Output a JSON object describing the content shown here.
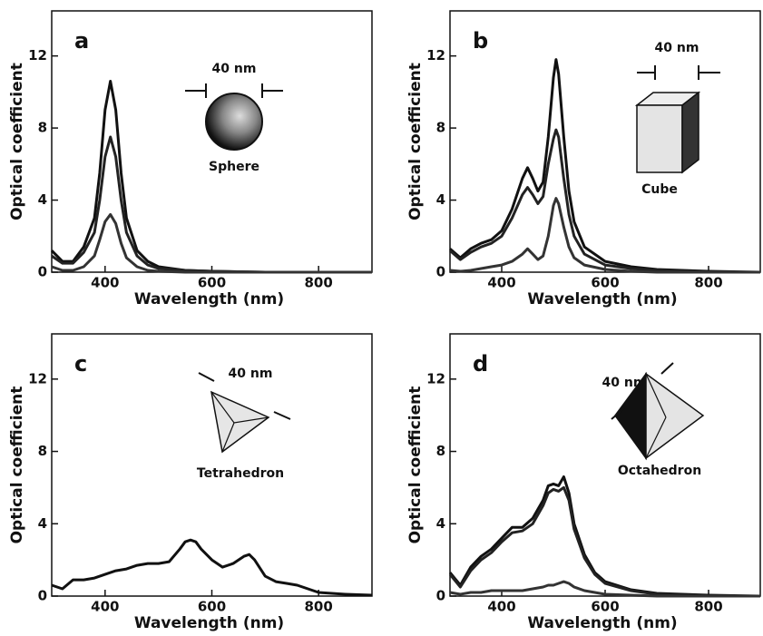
{
  "chart_data": [
    {
      "type": "line",
      "label": "a",
      "xlabel": "Wavelength (nm)",
      "ylabel": "Optical coefficient",
      "scale_label": "40 nm",
      "shape_label": "Sphere",
      "xlim": [
        300,
        900
      ],
      "ylim": [
        0,
        14.5
      ],
      "xticks": [
        400,
        600,
        800
      ],
      "yticks": [
        0,
        4,
        8,
        12
      ],
      "x": [
        300,
        320,
        340,
        360,
        380,
        390,
        400,
        410,
        420,
        430,
        440,
        460,
        480,
        500,
        550,
        600,
        700,
        800,
        900
      ],
      "series": [
        {
          "color": "#111111",
          "values": [
            1.2,
            0.6,
            0.6,
            1.4,
            3.0,
            5.5,
            9.0,
            10.6,
            9.0,
            5.5,
            3.0,
            1.2,
            0.6,
            0.3,
            0.1,
            0.05,
            0,
            0,
            0
          ]
        },
        {
          "color": "#222222",
          "values": [
            0.9,
            0.5,
            0.5,
            1.1,
            2.2,
            4.0,
            6.4,
            7.5,
            6.4,
            4.0,
            2.2,
            0.9,
            0.4,
            0.2,
            0.1,
            0.05,
            0,
            0,
            0
          ]
        },
        {
          "color": "#333333",
          "values": [
            0.3,
            0.1,
            0.1,
            0.3,
            0.9,
            1.8,
            2.8,
            3.2,
            2.7,
            1.6,
            0.8,
            0.3,
            0.1,
            0.05,
            0,
            0,
            0,
            0,
            0
          ]
        }
      ]
    },
    {
      "type": "line",
      "label": "b",
      "xlabel": "Wavelength (nm)",
      "ylabel": "Optical coefficient",
      "scale_label": "40 nm",
      "shape_label": "Cube",
      "xlim": [
        300,
        900
      ],
      "ylim": [
        0,
        14.5
      ],
      "xticks": [
        400,
        600,
        800
      ],
      "yticks": [
        0,
        4,
        8,
        12
      ],
      "x": [
        300,
        320,
        340,
        360,
        380,
        400,
        420,
        440,
        450,
        460,
        470,
        480,
        490,
        500,
        505,
        510,
        520,
        530,
        540,
        560,
        600,
        650,
        700,
        800,
        900
      ],
      "series": [
        {
          "color": "#111111",
          "values": [
            1.3,
            0.8,
            1.3,
            1.6,
            1.8,
            2.3,
            3.5,
            5.2,
            5.8,
            5.2,
            4.5,
            5.0,
            7.5,
            10.8,
            11.8,
            11.0,
            7.5,
            4.5,
            2.8,
            1.4,
            0.6,
            0.3,
            0.15,
            0.05,
            0
          ]
        },
        {
          "color": "#222222",
          "values": [
            1.2,
            0.7,
            1.1,
            1.4,
            1.6,
            2.0,
            3.0,
            4.3,
            4.7,
            4.3,
            3.8,
            4.2,
            6.0,
            7.4,
            7.9,
            7.5,
            5.2,
            3.2,
            2.0,
            1.0,
            0.4,
            0.2,
            0.1,
            0,
            0
          ]
        },
        {
          "color": "#333333",
          "values": [
            0.1,
            0.05,
            0.1,
            0.2,
            0.3,
            0.4,
            0.6,
            1.0,
            1.3,
            1.0,
            0.7,
            0.9,
            2.0,
            3.7,
            4.1,
            3.8,
            2.5,
            1.4,
            0.8,
            0.4,
            0.15,
            0.05,
            0,
            0,
            0
          ]
        }
      ]
    },
    {
      "type": "line",
      "label": "c",
      "xlabel": "Wavelength (nm)",
      "ylabel": "Optical coefficient",
      "scale_label": "40 nm",
      "shape_label": "Tetrahedron",
      "xlim": [
        300,
        900
      ],
      "ylim": [
        0,
        14.5
      ],
      "xticks": [
        400,
        600,
        800
      ],
      "yticks": [
        0,
        4,
        8,
        12
      ],
      "x": [
        300,
        320,
        340,
        360,
        380,
        400,
        420,
        440,
        460,
        480,
        500,
        520,
        540,
        550,
        560,
        570,
        580,
        600,
        620,
        640,
        660,
        670,
        680,
        700,
        720,
        740,
        760,
        780,
        800,
        850,
        900
      ],
      "series": [
        {
          "color": "#111111",
          "values": [
            0.6,
            0.4,
            0.9,
            0.9,
            1.0,
            1.2,
            1.4,
            1.5,
            1.7,
            1.8,
            1.8,
            1.9,
            2.6,
            3.0,
            3.1,
            3.0,
            2.6,
            2.0,
            1.6,
            1.8,
            2.2,
            2.3,
            2.0,
            1.1,
            0.8,
            0.7,
            0.6,
            0.4,
            0.2,
            0.1,
            0.05
          ]
        }
      ]
    },
    {
      "type": "line",
      "label": "d",
      "xlabel": "Wavelength (nm)",
      "ylabel": "Optical coefficient",
      "scale_label": "40 nm",
      "shape_label": "Octahedron",
      "xlim": [
        300,
        900
      ],
      "ylim": [
        0,
        14.5
      ],
      "xticks": [
        400,
        600,
        800
      ],
      "yticks": [
        0,
        4,
        8,
        12
      ],
      "x": [
        300,
        320,
        340,
        360,
        380,
        400,
        420,
        440,
        460,
        480,
        490,
        500,
        510,
        520,
        530,
        540,
        560,
        580,
        600,
        650,
        700,
        800,
        900
      ],
      "series": [
        {
          "color": "#111111",
          "values": [
            1.3,
            0.6,
            1.6,
            2.2,
            2.6,
            3.2,
            3.8,
            3.8,
            4.3,
            5.3,
            6.1,
            6.2,
            6.1,
            6.6,
            5.7,
            4.0,
            2.3,
            1.3,
            0.8,
            0.35,
            0.15,
            0.05,
            0
          ]
        },
        {
          "color": "#222222",
          "values": [
            1.2,
            0.5,
            1.4,
            2.0,
            2.4,
            3.0,
            3.5,
            3.6,
            4.0,
            5.0,
            5.7,
            5.9,
            5.8,
            6.0,
            5.3,
            3.7,
            2.1,
            1.2,
            0.7,
            0.3,
            0.1,
            0,
            0
          ]
        },
        {
          "color": "#333333",
          "values": [
            0.2,
            0.1,
            0.2,
            0.2,
            0.3,
            0.3,
            0.3,
            0.3,
            0.4,
            0.5,
            0.6,
            0.6,
            0.7,
            0.8,
            0.7,
            0.5,
            0.3,
            0.2,
            0.1,
            0.05,
            0,
            0,
            0
          ]
        }
      ]
    }
  ]
}
